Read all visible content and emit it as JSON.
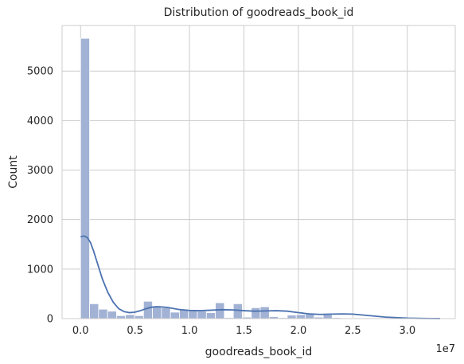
{
  "chart_data": {
    "type": "bar",
    "title": "Distribution of goodreads_book_id",
    "xlabel": "goodreads_book_id",
    "ylabel": "Count",
    "x_offset_label": "1e7",
    "x_scale": 10000000,
    "xlim": [
      -0.17,
      3.44
    ],
    "ylim": [
      0,
      5920
    ],
    "xticks": [
      0.0,
      0.5,
      1.0,
      1.5,
      2.0,
      2.5,
      3.0
    ],
    "xtick_labels": [
      "0.0",
      "0.5",
      "1.0",
      "1.5",
      "2.0",
      "2.5",
      "3.0"
    ],
    "yticks": [
      0,
      1000,
      2000,
      3000,
      4000,
      5000
    ],
    "ytick_labels": [
      "0",
      "1000",
      "2000",
      "3000",
      "4000",
      "5000"
    ],
    "grid": true,
    "bins_start": 0.0,
    "bin_width": 0.0825,
    "counts": [
      5660,
      300,
      190,
      150,
      60,
      80,
      60,
      350,
      240,
      220,
      130,
      190,
      170,
      150,
      120,
      320,
      20,
      300,
      30,
      220,
      240,
      40,
      20,
      70,
      80,
      90,
      30,
      80,
      20,
      10,
      10,
      10,
      10,
      5,
      5,
      5,
      5,
      5,
      5,
      5
    ],
    "kde": {
      "x": [
        0.0,
        0.03,
        0.06,
        0.09,
        0.12,
        0.16,
        0.2,
        0.25,
        0.3,
        0.35,
        0.4,
        0.45,
        0.5,
        0.55,
        0.6,
        0.65,
        0.7,
        0.75,
        0.8,
        0.85,
        0.9,
        1.0,
        1.1,
        1.2,
        1.3,
        1.4,
        1.5,
        1.6,
        1.7,
        1.8,
        1.9,
        2.0,
        2.1,
        2.2,
        2.3,
        2.4,
        2.5,
        2.6,
        2.7,
        2.8,
        2.9,
        3.0,
        3.1,
        3.2,
        3.3
      ],
      "y": [
        1650,
        1670,
        1640,
        1540,
        1360,
        1080,
        800,
        530,
        330,
        200,
        140,
        120,
        130,
        160,
        200,
        230,
        240,
        235,
        225,
        205,
        185,
        165,
        160,
        170,
        180,
        175,
        160,
        150,
        155,
        160,
        150,
        120,
        95,
        85,
        90,
        95,
        90,
        70,
        50,
        30,
        20,
        10,
        5,
        2,
        1
      ]
    },
    "colors": {
      "bar_fill": "#a2b2d4",
      "bar_edge": "#ffffff",
      "kde_line": "#4c72b0",
      "grid": "#cccccc",
      "spine": "#cccccc",
      "text": "#262626"
    }
  }
}
